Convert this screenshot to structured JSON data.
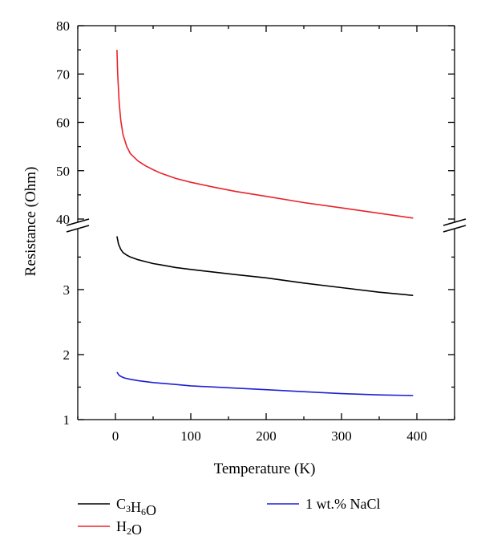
{
  "chart_data": {
    "type": "line",
    "xlabel": "Temperature (K)",
    "ylabel": "Resistance (Ohm)",
    "xlim": [
      -50,
      450
    ],
    "x_ticks": [
      0,
      100,
      200,
      300,
      400
    ],
    "y_axis_broken": true,
    "y_segments": [
      {
        "range": [
          1,
          3.9
        ],
        "ticks": [
          1,
          2,
          3
        ]
      },
      {
        "range": [
          40,
          80
        ],
        "ticks": [
          40,
          50,
          60,
          70,
          80
        ]
      }
    ],
    "grid": false,
    "legend_placement": "bottom",
    "series": [
      {
        "name": "C3H6O",
        "name_parts": [
          {
            "t": "C"
          },
          {
            "t": "3",
            "sub": true
          },
          {
            "t": "H"
          },
          {
            "t": "6",
            "sub": true
          },
          {
            "t": "O"
          }
        ],
        "color": "#000000",
        "x": [
          2,
          4,
          7,
          10,
          15,
          20,
          30,
          40,
          50,
          60,
          80,
          100,
          130,
          160,
          200,
          250,
          300,
          350,
          395
        ],
        "y": [
          3.82,
          3.7,
          3.62,
          3.57,
          3.53,
          3.5,
          3.46,
          3.43,
          3.4,
          3.38,
          3.34,
          3.31,
          3.27,
          3.23,
          3.18,
          3.1,
          3.03,
          2.96,
          2.91
        ]
      },
      {
        "name": "H2O",
        "name_parts": [
          {
            "t": "H"
          },
          {
            "t": "2",
            "sub": true
          },
          {
            "t": "O"
          }
        ],
        "color": "#e8232a",
        "x": [
          2,
          3,
          5,
          7,
          10,
          15,
          20,
          30,
          40,
          50,
          60,
          80,
          100,
          130,
          160,
          200,
          250,
          300,
          350,
          395
        ],
        "y": [
          75,
          70,
          64,
          60.5,
          57.5,
          55,
          53.5,
          52,
          51,
          50.2,
          49.5,
          48.4,
          47.6,
          46.6,
          45.7,
          44.7,
          43.4,
          42.3,
          41.2,
          40.2
        ]
      },
      {
        "name": "1 wt.% NaCl",
        "name_parts": [
          {
            "t": "1 wt.% NaCl"
          }
        ],
        "color": "#1f1fd6",
        "x": [
          2,
          5,
          8,
          12,
          20,
          30,
          50,
          80,
          100,
          150,
          200,
          250,
          300,
          350,
          395
        ],
        "y": [
          1.73,
          1.68,
          1.66,
          1.64,
          1.62,
          1.6,
          1.57,
          1.54,
          1.52,
          1.49,
          1.46,
          1.43,
          1.4,
          1.38,
          1.37
        ]
      }
    ]
  }
}
